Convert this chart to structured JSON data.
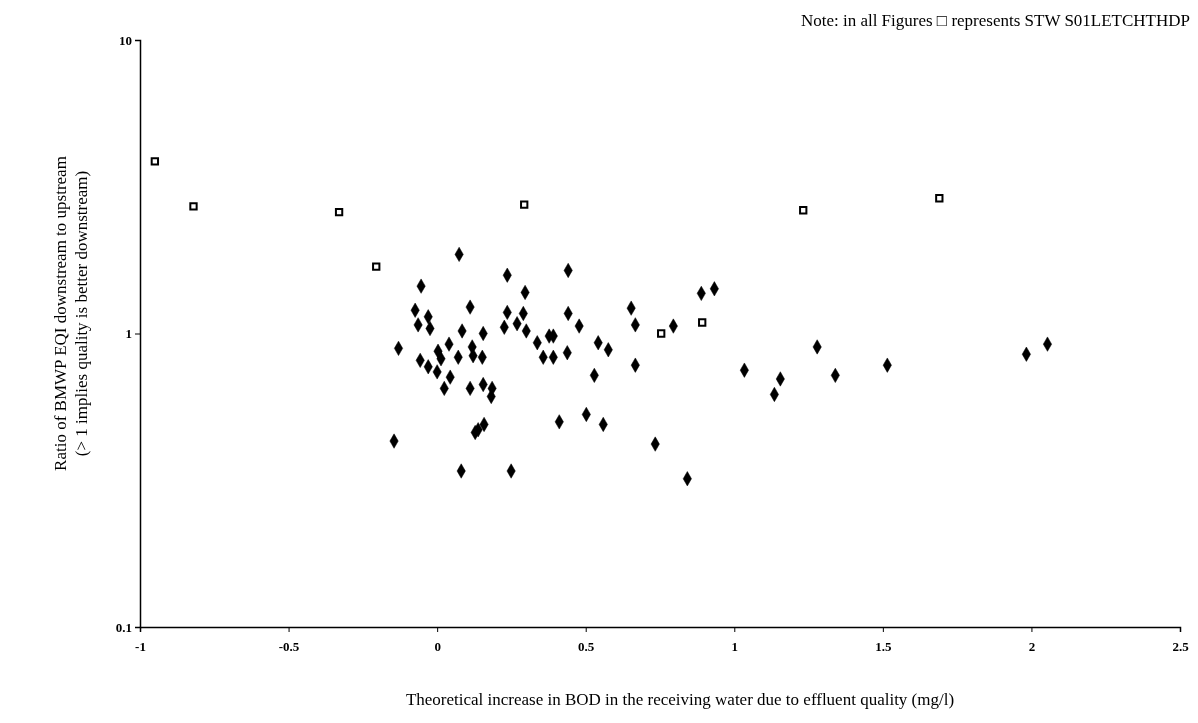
{
  "chart_data": {
    "type": "scatter",
    "xlabel": "Theoretical increase in BOD in the receiving water due to effluent quality (mg/l)",
    "ylabel": "Ratio of BMWP EQI downstream to upstream\n(> 1 implies quality is better downstream)",
    "annotations": [
      "Note: in all Figures □ represents STW S01LETCHTHDP"
    ],
    "xlim": [
      -1,
      2.5
    ],
    "xticks": [
      -1,
      -0.5,
      0,
      0.5,
      1,
      1.5,
      2,
      2.5
    ],
    "ylim": [
      0.1,
      10
    ],
    "yticks": [
      0.1,
      1,
      10
    ],
    "log": true,
    "grid": false,
    "series": [
      {
        "color": "#000000",
        "marker": "square",
        "x": [
          -0.95,
          -0.82,
          -0.33,
          -0.205,
          0.293,
          0.754,
          0.892,
          1.232,
          1.69
        ],
        "values": [
          3.86,
          2.71,
          2.59,
          1.69,
          2.75,
          1.0,
          1.09,
          2.63,
          2.89
        ]
      },
      {
        "color": "#000000",
        "marker": "diamond",
        "x": [
          0.074,
          -0.054,
          0.236,
          0.296,
          0.111,
          -0.074,
          -0.03,
          -0.064,
          -0.024,
          0.084,
          0.155,
          0.236,
          0.29,
          0.226,
          0.269,
          0.3,
          0.337,
          0.357,
          0.377,
          -0.13,
          0.04,
          0.003,
          0.013,
          -0.057,
          -0.03,
          0.0,
          0.071,
          0.118,
          0.121,
          0.152,
          0.044,
          0.024,
          0.111,
          0.155,
          0.185,
          0.182,
          0.158,
          0.138,
          0.128,
          -0.145,
          0.081,
          0.249,
          0.441,
          0.441,
          0.653,
          0.667,
          0.478,
          0.391,
          0.438,
          0.391,
          0.542,
          0.576,
          0.529,
          0.667,
          0.795,
          0.889,
          0.933,
          0.411,
          0.502,
          0.559,
          0.734,
          0.842,
          1.034,
          1.155,
          1.135,
          1.279,
          1.34,
          1.515,
          1.983,
          2.054
        ],
        "values": [
          1.86,
          1.45,
          1.58,
          1.38,
          1.23,
          1.2,
          1.14,
          1.07,
          1.04,
          1.02,
          1.0,
          1.18,
          1.17,
          1.05,
          1.08,
          1.02,
          0.93,
          0.83,
          0.98,
          0.89,
          0.92,
          0.87,
          0.82,
          0.81,
          0.77,
          0.74,
          0.83,
          0.9,
          0.84,
          0.83,
          0.71,
          0.65,
          0.65,
          0.67,
          0.65,
          0.61,
          0.49,
          0.47,
          0.46,
          0.43,
          0.34,
          0.34,
          1.64,
          1.17,
          1.22,
          1.07,
          1.06,
          0.98,
          0.86,
          0.83,
          0.93,
          0.88,
          0.72,
          0.78,
          1.06,
          1.37,
          1.42,
          0.5,
          0.53,
          0.49,
          0.42,
          0.32,
          0.75,
          0.7,
          0.62,
          0.9,
          0.72,
          0.78,
          0.85,
          0.92
        ]
      }
    ]
  }
}
